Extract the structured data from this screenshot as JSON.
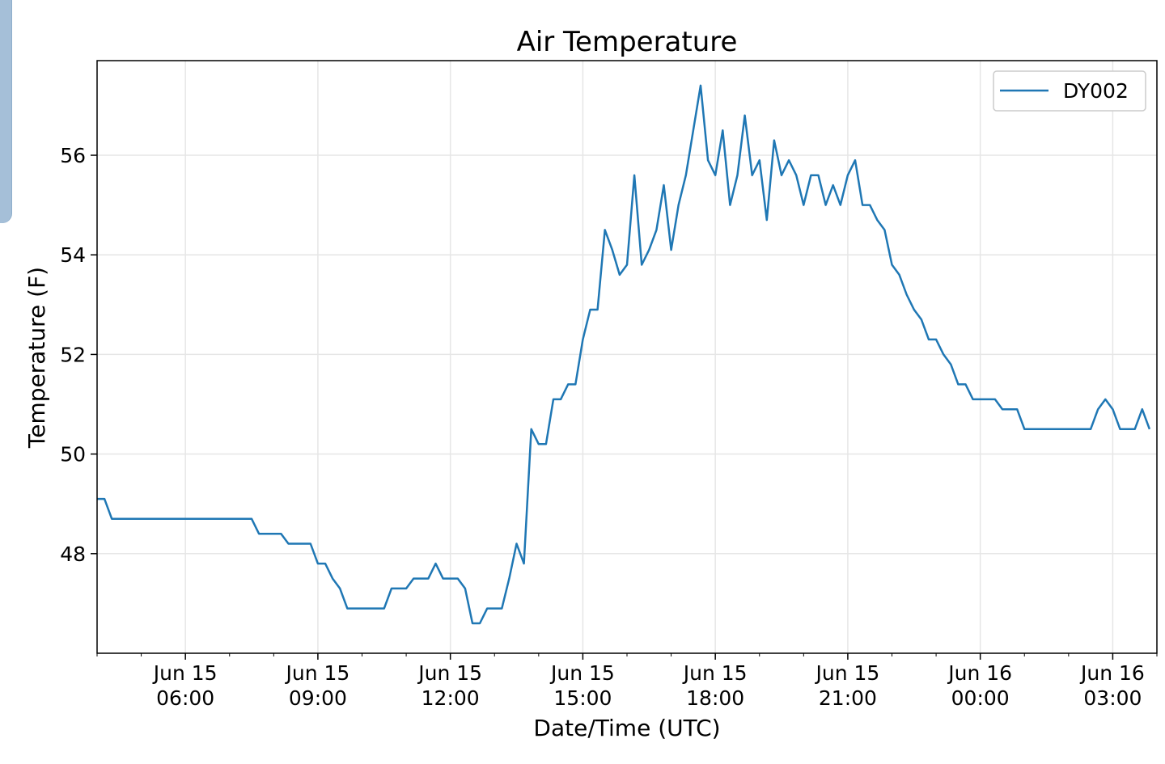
{
  "chart_data": {
    "type": "line",
    "title": "Air Temperature",
    "xlabel": "Date/Time (UTC)",
    "ylabel": "Temperature (F)",
    "xlim": [
      "2021-06-15T04:00",
      "2021-06-16T04:00"
    ],
    "ylim": [
      46.0,
      57.9
    ],
    "grid": true,
    "legend_position": "top-right",
    "x_ticks": [
      {
        "value": "2021-06-15T06:00",
        "label_date": "Jun 15",
        "label_time": "06:00"
      },
      {
        "value": "2021-06-15T09:00",
        "label_date": "Jun 15",
        "label_time": "09:00"
      },
      {
        "value": "2021-06-15T12:00",
        "label_date": "Jun 15",
        "label_time": "12:00"
      },
      {
        "value": "2021-06-15T15:00",
        "label_date": "Jun 15",
        "label_time": "15:00"
      },
      {
        "value": "2021-06-15T18:00",
        "label_date": "Jun 15",
        "label_time": "18:00"
      },
      {
        "value": "2021-06-15T21:00",
        "label_date": "Jun 15",
        "label_time": "21:00"
      },
      {
        "value": "2021-06-16T00:00",
        "label_date": "Jun 16",
        "label_time": "00:00"
      },
      {
        "value": "2021-06-16T03:00",
        "label_date": "Jun 16",
        "label_time": "03:00"
      }
    ],
    "y_ticks": [
      48,
      50,
      52,
      54,
      56
    ],
    "series": [
      {
        "name": "DY002",
        "color": "#1f77b4",
        "points": [
          [
            "2021-06-15T04:00",
            49.1
          ],
          [
            "2021-06-15T04:10",
            49.1
          ],
          [
            "2021-06-15T04:20",
            48.7
          ],
          [
            "2021-06-15T05:00",
            48.7
          ],
          [
            "2021-06-15T06:00",
            48.7
          ],
          [
            "2021-06-15T07:00",
            48.7
          ],
          [
            "2021-06-15T07:30",
            48.7
          ],
          [
            "2021-06-15T07:40",
            48.4
          ],
          [
            "2021-06-15T08:00",
            48.4
          ],
          [
            "2021-06-15T08:10",
            48.4
          ],
          [
            "2021-06-15T08:20",
            48.2
          ],
          [
            "2021-06-15T08:40",
            48.2
          ],
          [
            "2021-06-15T08:50",
            48.2
          ],
          [
            "2021-06-15T09:00",
            47.8
          ],
          [
            "2021-06-15T09:10",
            47.8
          ],
          [
            "2021-06-15T09:20",
            47.5
          ],
          [
            "2021-06-15T09:30",
            47.3
          ],
          [
            "2021-06-15T09:40",
            46.9
          ],
          [
            "2021-06-15T10:00",
            46.9
          ],
          [
            "2021-06-15T10:30",
            46.9
          ],
          [
            "2021-06-15T10:40",
            47.3
          ],
          [
            "2021-06-15T10:50",
            47.3
          ],
          [
            "2021-06-15T11:00",
            47.3
          ],
          [
            "2021-06-15T11:10",
            47.5
          ],
          [
            "2021-06-15T11:20",
            47.5
          ],
          [
            "2021-06-15T11:30",
            47.5
          ],
          [
            "2021-06-15T11:40",
            47.8
          ],
          [
            "2021-06-15T11:50",
            47.5
          ],
          [
            "2021-06-15T12:00",
            47.5
          ],
          [
            "2021-06-15T12:10",
            47.5
          ],
          [
            "2021-06-15T12:20",
            47.3
          ],
          [
            "2021-06-15T12:30",
            46.6
          ],
          [
            "2021-06-15T12:40",
            46.6
          ],
          [
            "2021-06-15T12:50",
            46.9
          ],
          [
            "2021-06-15T13:00",
            46.9
          ],
          [
            "2021-06-15T13:10",
            46.9
          ],
          [
            "2021-06-15T13:20",
            47.5
          ],
          [
            "2021-06-15T13:30",
            48.2
          ],
          [
            "2021-06-15T13:40",
            47.8
          ],
          [
            "2021-06-15T13:50",
            50.5
          ],
          [
            "2021-06-15T14:00",
            50.2
          ],
          [
            "2021-06-15T14:10",
            50.2
          ],
          [
            "2021-06-15T14:20",
            51.1
          ],
          [
            "2021-06-15T14:30",
            51.1
          ],
          [
            "2021-06-15T14:40",
            51.4
          ],
          [
            "2021-06-15T14:50",
            51.4
          ],
          [
            "2021-06-15T15:00",
            52.3
          ],
          [
            "2021-06-15T15:10",
            52.9
          ],
          [
            "2021-06-15T15:20",
            52.9
          ],
          [
            "2021-06-15T15:30",
            54.5
          ],
          [
            "2021-06-15T15:40",
            54.1
          ],
          [
            "2021-06-15T15:50",
            53.6
          ],
          [
            "2021-06-15T16:00",
            53.8
          ],
          [
            "2021-06-15T16:10",
            55.6
          ],
          [
            "2021-06-15T16:20",
            53.8
          ],
          [
            "2021-06-15T16:30",
            54.1
          ],
          [
            "2021-06-15T16:40",
            54.5
          ],
          [
            "2021-06-15T16:50",
            55.4
          ],
          [
            "2021-06-15T17:00",
            54.1
          ],
          [
            "2021-06-15T17:10",
            55.0
          ],
          [
            "2021-06-15T17:20",
            55.6
          ],
          [
            "2021-06-15T17:30",
            56.5
          ],
          [
            "2021-06-15T17:40",
            57.4
          ],
          [
            "2021-06-15T17:50",
            55.9
          ],
          [
            "2021-06-15T18:00",
            55.6
          ],
          [
            "2021-06-15T18:10",
            56.5
          ],
          [
            "2021-06-15T18:20",
            55.0
          ],
          [
            "2021-06-15T18:30",
            55.6
          ],
          [
            "2021-06-15T18:40",
            56.8
          ],
          [
            "2021-06-15T18:50",
            55.6
          ],
          [
            "2021-06-15T19:00",
            55.9
          ],
          [
            "2021-06-15T19:10",
            54.7
          ],
          [
            "2021-06-15T19:20",
            56.3
          ],
          [
            "2021-06-15T19:30",
            55.6
          ],
          [
            "2021-06-15T19:40",
            55.9
          ],
          [
            "2021-06-15T19:50",
            55.6
          ],
          [
            "2021-06-15T20:00",
            55.0
          ],
          [
            "2021-06-15T20:10",
            55.6
          ],
          [
            "2021-06-15T20:20",
            55.6
          ],
          [
            "2021-06-15T20:30",
            55.0
          ],
          [
            "2021-06-15T20:40",
            55.4
          ],
          [
            "2021-06-15T20:50",
            55.0
          ],
          [
            "2021-06-15T21:00",
            55.6
          ],
          [
            "2021-06-15T21:10",
            55.9
          ],
          [
            "2021-06-15T21:20",
            55.0
          ],
          [
            "2021-06-15T21:30",
            55.0
          ],
          [
            "2021-06-15T21:40",
            54.7
          ],
          [
            "2021-06-15T21:50",
            54.5
          ],
          [
            "2021-06-15T22:00",
            53.8
          ],
          [
            "2021-06-15T22:10",
            53.6
          ],
          [
            "2021-06-15T22:20",
            53.2
          ],
          [
            "2021-06-15T22:30",
            52.9
          ],
          [
            "2021-06-15T22:40",
            52.7
          ],
          [
            "2021-06-15T22:50",
            52.3
          ],
          [
            "2021-06-15T23:00",
            52.3
          ],
          [
            "2021-06-15T23:10",
            52.0
          ],
          [
            "2021-06-15T23:20",
            51.8
          ],
          [
            "2021-06-15T23:30",
            51.4
          ],
          [
            "2021-06-15T23:40",
            51.4
          ],
          [
            "2021-06-15T23:50",
            51.1
          ],
          [
            "2021-06-16T00:00",
            51.1
          ],
          [
            "2021-06-16T00:10",
            51.1
          ],
          [
            "2021-06-16T00:20",
            51.1
          ],
          [
            "2021-06-16T00:30",
            50.9
          ],
          [
            "2021-06-16T00:40",
            50.9
          ],
          [
            "2021-06-16T00:50",
            50.9
          ],
          [
            "2021-06-16T01:00",
            50.5
          ],
          [
            "2021-06-16T01:30",
            50.5
          ],
          [
            "2021-06-16T02:00",
            50.5
          ],
          [
            "2021-06-16T02:30",
            50.5
          ],
          [
            "2021-06-16T02:40",
            50.9
          ],
          [
            "2021-06-16T02:50",
            51.1
          ],
          [
            "2021-06-16T03:00",
            50.9
          ],
          [
            "2021-06-16T03:10",
            50.5
          ],
          [
            "2021-06-16T03:20",
            50.5
          ],
          [
            "2021-06-16T03:30",
            50.5
          ],
          [
            "2021-06-16T03:40",
            50.9
          ],
          [
            "2021-06-16T03:50",
            50.5
          ]
        ]
      }
    ]
  }
}
